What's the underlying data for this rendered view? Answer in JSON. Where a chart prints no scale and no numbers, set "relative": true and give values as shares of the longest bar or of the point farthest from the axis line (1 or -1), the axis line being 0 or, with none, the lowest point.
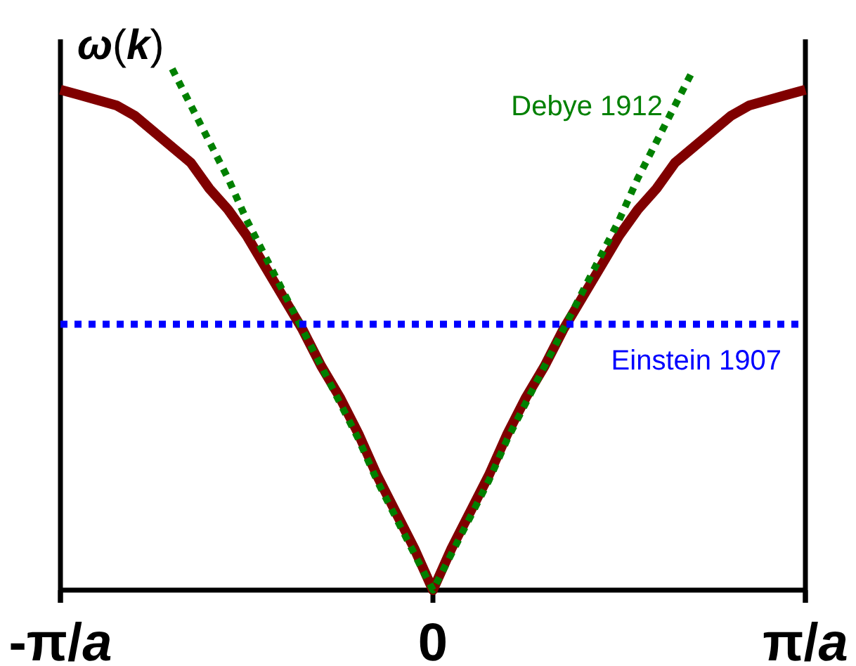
{
  "chart_data": {
    "type": "line",
    "relative": true,
    "ylabel": "ω(k)",
    "line_style": "solid",
    "categories": [
      "-π/a",
      null,
      null,
      null,
      null,
      null,
      null,
      null,
      null,
      null,
      null,
      null,
      null,
      null,
      null,
      null,
      null,
      null,
      null,
      null,
      "0",
      null,
      null,
      null,
      null,
      null,
      null,
      null,
      null,
      null,
      null,
      null,
      null,
      null,
      null,
      null,
      null,
      null,
      null,
      null,
      "π/a"
    ],
    "series": [
      {
        "color": "#800000",
        "values": [
          0.96,
          0.95,
          0.94,
          0.93,
          0.91,
          0.88,
          0.85,
          0.82,
          0.77,
          0.73,
          0.68,
          0.62,
          0.56,
          0.5,
          0.43,
          0.37,
          0.3,
          0.22,
          0.15,
          0.08,
          0,
          0.08,
          0.15,
          0.22,
          0.3,
          0.37,
          0.43,
          0.5,
          0.56,
          0.62,
          0.68,
          0.73,
          0.77,
          0.82,
          0.85,
          0.88,
          0.91,
          0.93,
          0.94,
          0.95,
          0.96
        ]
      },
      {
        "name": "Debye 1912",
        "color": "#008000",
        "line_style": "dotted",
        "values": [
          null,
          null,
          null,
          null,
          null,
          null,
          1,
          0.93,
          0.86,
          0.79,
          0.71,
          0.64,
          0.57,
          0.5,
          0.43,
          0.36,
          0.29,
          0.21,
          0.14,
          0.07,
          0,
          0.07,
          0.14,
          0.21,
          0.29,
          0.36,
          0.43,
          0.5,
          0.57,
          0.64,
          0.71,
          0.79,
          0.86,
          0.93,
          1,
          null,
          null,
          null,
          null,
          null,
          null
        ]
      }
    ],
    "ref_lines": [
      {
        "axis": "y",
        "value": 0.51,
        "label": "Einstein 1907",
        "color": "#0000ff",
        "line_style": "dotted"
      }
    ]
  }
}
